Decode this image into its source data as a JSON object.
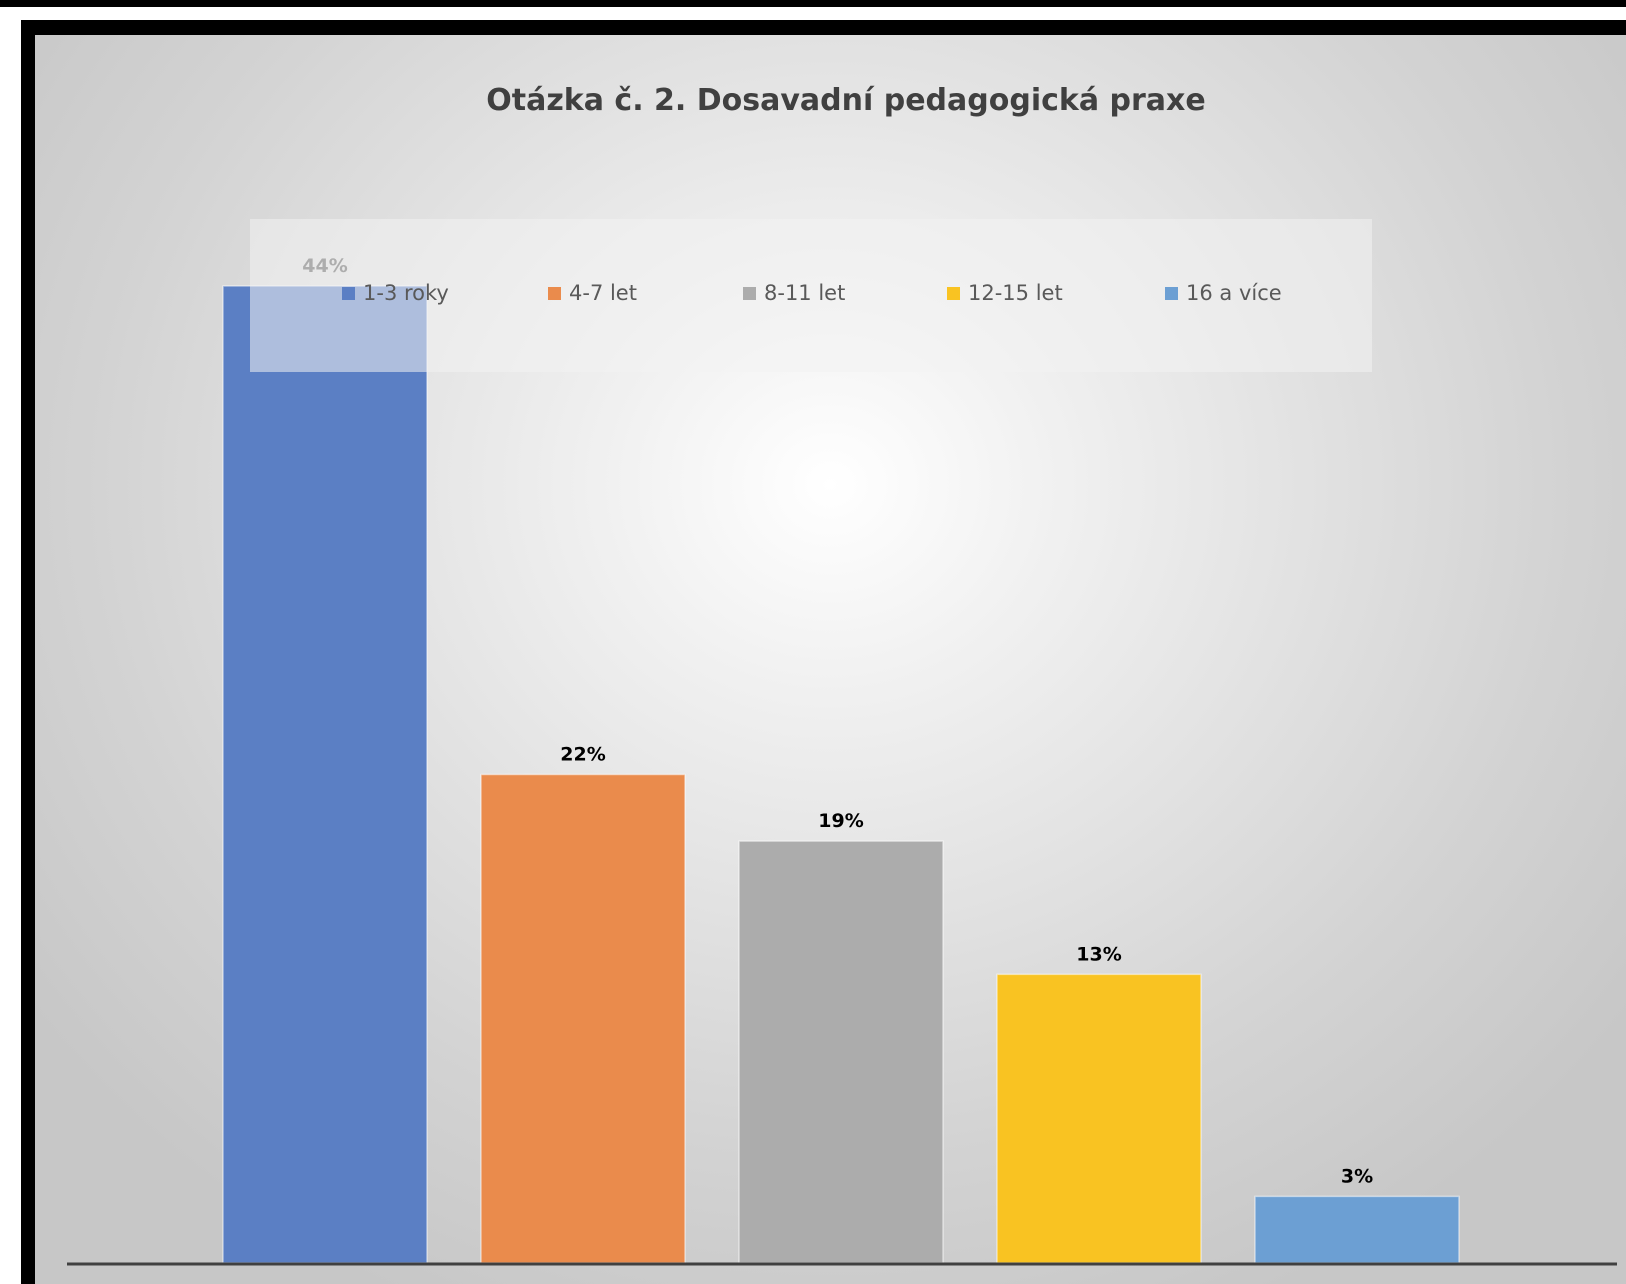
{
  "chart_data": {
    "type": "bar",
    "title": "Otázka č. 2. Dosavadní pedagogická praxe",
    "xlabel": "",
    "ylabel": "",
    "ylim": [
      0,
      44
    ],
    "grid": false,
    "legend_position": "top",
    "categories": [
      "1-3 roky",
      "4-7 let",
      "8-11 let",
      "12-15 let",
      "16 a více"
    ],
    "values": [
      44,
      22,
      19,
      13,
      3
    ],
    "value_labels": [
      "44%",
      "22%",
      "19%",
      "13%",
      "3%"
    ],
    "colors": [
      "#5b7fc4",
      "#ea8b4c",
      "#acacac",
      "#f9c322",
      "#6c9fd3"
    ],
    "label_colors": [
      "#595959",
      "#000000",
      "#000000",
      "#000000",
      "#000000"
    ],
    "axis_color": "#404040"
  }
}
